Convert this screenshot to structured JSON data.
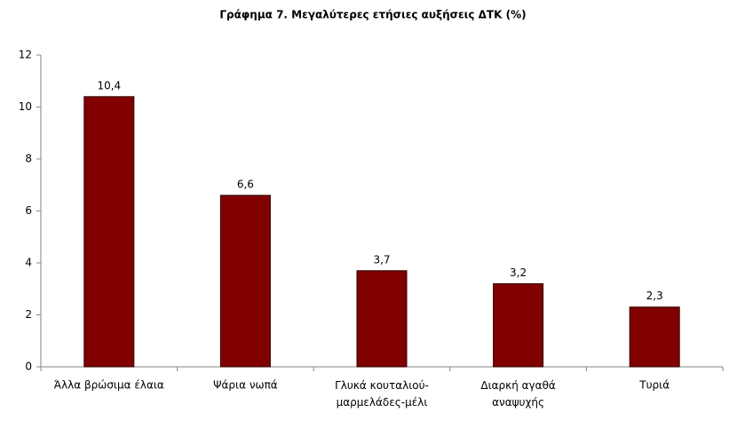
{
  "chart_data": {
    "type": "bar",
    "title": "Γράφημα 7. Μεγαλύτερες ετήσιες αυξήσεις ΔΤΚ (%)",
    "categories": [
      "Άλλα βρώσιμα έλαια",
      "Ψάρια νωπά",
      "Γλυκά κουταλιού-\nμαρμελάδες-μέλι",
      "Διαρκή αγαθά\nαναψυχής",
      "Τυριά"
    ],
    "values": [
      10.4,
      6.6,
      3.7,
      3.2,
      2.3
    ],
    "value_labels": [
      "10,4",
      "6,6",
      "3,7",
      "3,2",
      "2,3"
    ],
    "color": "#800000",
    "ylim": [
      0,
      12
    ],
    "yticks": [
      0,
      2,
      4,
      6,
      8,
      10,
      12
    ],
    "grid": false
  }
}
